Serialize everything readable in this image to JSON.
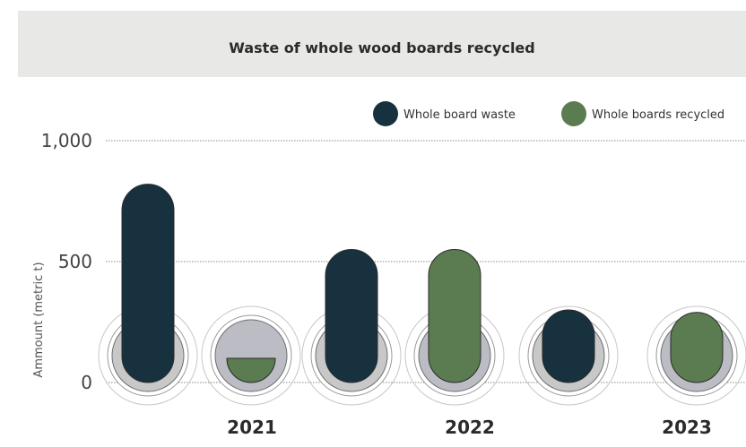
{
  "chart_data": {
    "type": "bar",
    "title": "Waste of whole wood boards recycled",
    "xlabel": "",
    "ylabel": "Ammount (metric t)",
    "categories": [
      "2021",
      "2022",
      "2023"
    ],
    "series": [
      {
        "name": "Whole board waste",
        "color": "#17313f",
        "values": [
          820,
          550,
          300
        ]
      },
      {
        "name": "Whole boards recycled",
        "color": "#5b7b51",
        "values": [
          100,
          550,
          290
        ]
      }
    ],
    "yticks": [
      0,
      500,
      1000
    ],
    "ytick_labels": [
      "0",
      "500",
      "1,000"
    ],
    "ylim": [
      0,
      1000
    ],
    "grid": true,
    "legend_position": "top-right"
  }
}
